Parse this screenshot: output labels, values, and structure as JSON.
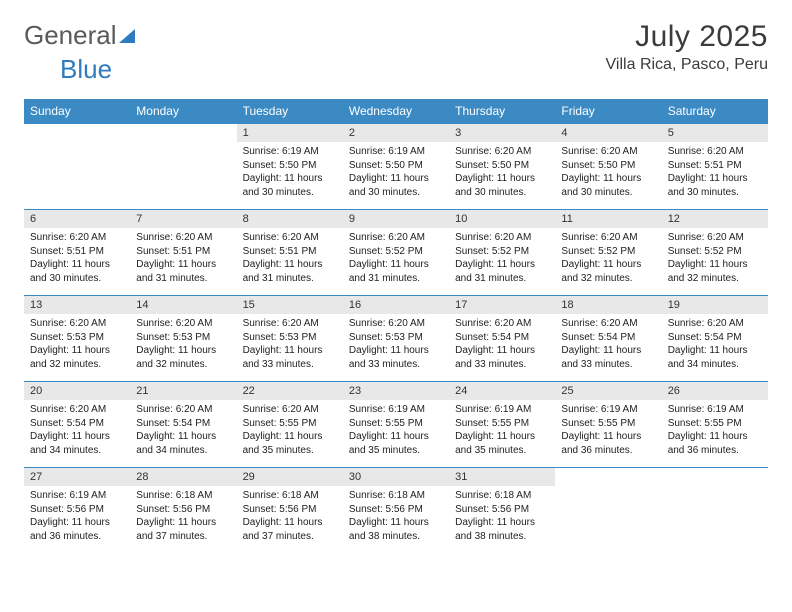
{
  "logo": {
    "general": "General",
    "blue": "Blue"
  },
  "header": {
    "month": "July 2025",
    "location": "Villa Rica, Pasco, Peru"
  },
  "colors": {
    "header_bg": "#3b8ac4",
    "daynum_bg": "#e8e8e8",
    "row_border": "#3b8ac4"
  },
  "daynames": [
    "Sunday",
    "Monday",
    "Tuesday",
    "Wednesday",
    "Thursday",
    "Friday",
    "Saturday"
  ],
  "weeks": [
    [
      {
        "n": "",
        "sr": "",
        "ss": "",
        "dl": ""
      },
      {
        "n": "",
        "sr": "",
        "ss": "",
        "dl": ""
      },
      {
        "n": "1",
        "sr": "Sunrise: 6:19 AM",
        "ss": "Sunset: 5:50 PM",
        "dl": "Daylight: 11 hours and 30 minutes."
      },
      {
        "n": "2",
        "sr": "Sunrise: 6:19 AM",
        "ss": "Sunset: 5:50 PM",
        "dl": "Daylight: 11 hours and 30 minutes."
      },
      {
        "n": "3",
        "sr": "Sunrise: 6:20 AM",
        "ss": "Sunset: 5:50 PM",
        "dl": "Daylight: 11 hours and 30 minutes."
      },
      {
        "n": "4",
        "sr": "Sunrise: 6:20 AM",
        "ss": "Sunset: 5:50 PM",
        "dl": "Daylight: 11 hours and 30 minutes."
      },
      {
        "n": "5",
        "sr": "Sunrise: 6:20 AM",
        "ss": "Sunset: 5:51 PM",
        "dl": "Daylight: 11 hours and 30 minutes."
      }
    ],
    [
      {
        "n": "6",
        "sr": "Sunrise: 6:20 AM",
        "ss": "Sunset: 5:51 PM",
        "dl": "Daylight: 11 hours and 30 minutes."
      },
      {
        "n": "7",
        "sr": "Sunrise: 6:20 AM",
        "ss": "Sunset: 5:51 PM",
        "dl": "Daylight: 11 hours and 31 minutes."
      },
      {
        "n": "8",
        "sr": "Sunrise: 6:20 AM",
        "ss": "Sunset: 5:51 PM",
        "dl": "Daylight: 11 hours and 31 minutes."
      },
      {
        "n": "9",
        "sr": "Sunrise: 6:20 AM",
        "ss": "Sunset: 5:52 PM",
        "dl": "Daylight: 11 hours and 31 minutes."
      },
      {
        "n": "10",
        "sr": "Sunrise: 6:20 AM",
        "ss": "Sunset: 5:52 PM",
        "dl": "Daylight: 11 hours and 31 minutes."
      },
      {
        "n": "11",
        "sr": "Sunrise: 6:20 AM",
        "ss": "Sunset: 5:52 PM",
        "dl": "Daylight: 11 hours and 32 minutes."
      },
      {
        "n": "12",
        "sr": "Sunrise: 6:20 AM",
        "ss": "Sunset: 5:52 PM",
        "dl": "Daylight: 11 hours and 32 minutes."
      }
    ],
    [
      {
        "n": "13",
        "sr": "Sunrise: 6:20 AM",
        "ss": "Sunset: 5:53 PM",
        "dl": "Daylight: 11 hours and 32 minutes."
      },
      {
        "n": "14",
        "sr": "Sunrise: 6:20 AM",
        "ss": "Sunset: 5:53 PM",
        "dl": "Daylight: 11 hours and 32 minutes."
      },
      {
        "n": "15",
        "sr": "Sunrise: 6:20 AM",
        "ss": "Sunset: 5:53 PM",
        "dl": "Daylight: 11 hours and 33 minutes."
      },
      {
        "n": "16",
        "sr": "Sunrise: 6:20 AM",
        "ss": "Sunset: 5:53 PM",
        "dl": "Daylight: 11 hours and 33 minutes."
      },
      {
        "n": "17",
        "sr": "Sunrise: 6:20 AM",
        "ss": "Sunset: 5:54 PM",
        "dl": "Daylight: 11 hours and 33 minutes."
      },
      {
        "n": "18",
        "sr": "Sunrise: 6:20 AM",
        "ss": "Sunset: 5:54 PM",
        "dl": "Daylight: 11 hours and 33 minutes."
      },
      {
        "n": "19",
        "sr": "Sunrise: 6:20 AM",
        "ss": "Sunset: 5:54 PM",
        "dl": "Daylight: 11 hours and 34 minutes."
      }
    ],
    [
      {
        "n": "20",
        "sr": "Sunrise: 6:20 AM",
        "ss": "Sunset: 5:54 PM",
        "dl": "Daylight: 11 hours and 34 minutes."
      },
      {
        "n": "21",
        "sr": "Sunrise: 6:20 AM",
        "ss": "Sunset: 5:54 PM",
        "dl": "Daylight: 11 hours and 34 minutes."
      },
      {
        "n": "22",
        "sr": "Sunrise: 6:20 AM",
        "ss": "Sunset: 5:55 PM",
        "dl": "Daylight: 11 hours and 35 minutes."
      },
      {
        "n": "23",
        "sr": "Sunrise: 6:19 AM",
        "ss": "Sunset: 5:55 PM",
        "dl": "Daylight: 11 hours and 35 minutes."
      },
      {
        "n": "24",
        "sr": "Sunrise: 6:19 AM",
        "ss": "Sunset: 5:55 PM",
        "dl": "Daylight: 11 hours and 35 minutes."
      },
      {
        "n": "25",
        "sr": "Sunrise: 6:19 AM",
        "ss": "Sunset: 5:55 PM",
        "dl": "Daylight: 11 hours and 36 minutes."
      },
      {
        "n": "26",
        "sr": "Sunrise: 6:19 AM",
        "ss": "Sunset: 5:55 PM",
        "dl": "Daylight: 11 hours and 36 minutes."
      }
    ],
    [
      {
        "n": "27",
        "sr": "Sunrise: 6:19 AM",
        "ss": "Sunset: 5:56 PM",
        "dl": "Daylight: 11 hours and 36 minutes."
      },
      {
        "n": "28",
        "sr": "Sunrise: 6:18 AM",
        "ss": "Sunset: 5:56 PM",
        "dl": "Daylight: 11 hours and 37 minutes."
      },
      {
        "n": "29",
        "sr": "Sunrise: 6:18 AM",
        "ss": "Sunset: 5:56 PM",
        "dl": "Daylight: 11 hours and 37 minutes."
      },
      {
        "n": "30",
        "sr": "Sunrise: 6:18 AM",
        "ss": "Sunset: 5:56 PM",
        "dl": "Daylight: 11 hours and 38 minutes."
      },
      {
        "n": "31",
        "sr": "Sunrise: 6:18 AM",
        "ss": "Sunset: 5:56 PM",
        "dl": "Daylight: 11 hours and 38 minutes."
      },
      {
        "n": "",
        "sr": "",
        "ss": "",
        "dl": ""
      },
      {
        "n": "",
        "sr": "",
        "ss": "",
        "dl": ""
      }
    ]
  ]
}
